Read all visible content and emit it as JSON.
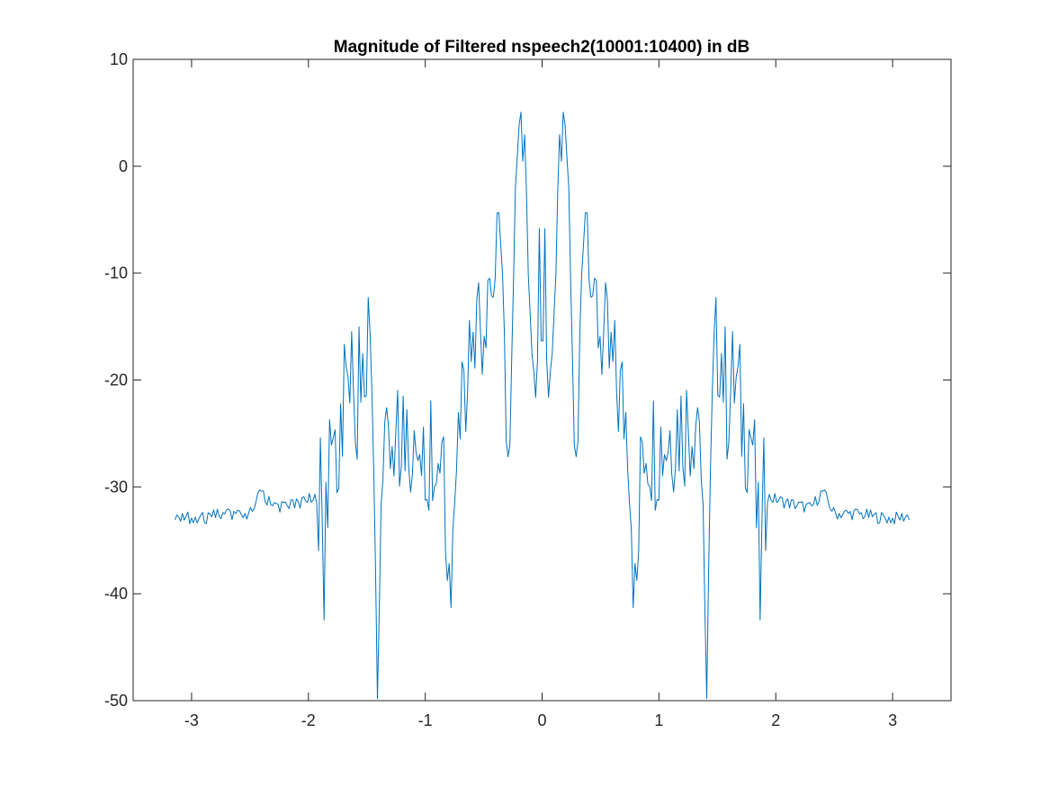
{
  "chart_data": {
    "type": "line",
    "title": "Magnitude of Filtered nspeech2(10001:10400) in dB",
    "xlabel": "",
    "ylabel": "",
    "xlim": [
      -3.5,
      3.5
    ],
    "ylim": [
      -50,
      10
    ],
    "x_ticks": [
      -3,
      -2,
      -1,
      0,
      1,
      2,
      3
    ],
    "y_ticks": [
      10,
      0,
      -10,
      -20,
      -30,
      -40,
      -50
    ],
    "x_tick_labels": [
      "-3",
      "-2",
      "-1",
      "0",
      "1",
      "2",
      "3"
    ],
    "y_tick_labels": [
      "10",
      "0",
      "-10",
      "-20",
      "-30",
      "-40",
      "-50"
    ],
    "grid": false,
    "line_color": "#0072BD",
    "series": [
      {
        "x_range": [
          -3.1416,
          3.1416
        ],
        "points": 400,
        "symmetric": true,
        "half_keypoints": [
          {
            "x": 0.0,
            "y": -21.0
          },
          {
            "x": 0.02,
            "y": -3.5
          },
          {
            "x": 0.04,
            "y": -18.0
          },
          {
            "x": 0.06,
            "y": -22.5
          },
          {
            "x": 0.09,
            "y": -15.0
          },
          {
            "x": 0.12,
            "y": -10.0
          },
          {
            "x": 0.15,
            "y": 1.5
          },
          {
            "x": 0.18,
            "y": 2.6
          },
          {
            "x": 0.21,
            "y": 2.0
          },
          {
            "x": 0.24,
            "y": -8.0
          },
          {
            "x": 0.27,
            "y": -24.0
          },
          {
            "x": 0.3,
            "y": -30.3
          },
          {
            "x": 0.33,
            "y": -12.0
          },
          {
            "x": 0.36,
            "y": -4.0
          },
          {
            "x": 0.38,
            "y": -3.0
          },
          {
            "x": 0.41,
            "y": -10.0
          },
          {
            "x": 0.45,
            "y": -13.0
          },
          {
            "x": 0.5,
            "y": -15.0
          },
          {
            "x": 0.56,
            "y": -18.0
          },
          {
            "x": 0.62,
            "y": -20.0
          },
          {
            "x": 0.68,
            "y": -22.0
          },
          {
            "x": 0.74,
            "y": -24.0
          },
          {
            "x": 0.8,
            "y": -42.7
          },
          {
            "x": 0.86,
            "y": -25.0
          },
          {
            "x": 0.95,
            "y": -26.0
          },
          {
            "x": 1.05,
            "y": -25.5
          },
          {
            "x": 1.15,
            "y": -24.0
          },
          {
            "x": 1.25,
            "y": -24.0
          },
          {
            "x": 1.35,
            "y": -22.0
          },
          {
            "x": 1.4,
            "y": -49.2
          },
          {
            "x": 1.47,
            "y": -19.0
          },
          {
            "x": 1.52,
            "y": -15.8
          },
          {
            "x": 1.58,
            "y": -22.0
          },
          {
            "x": 1.65,
            "y": -20.0
          },
          {
            "x": 1.72,
            "y": -24.0
          },
          {
            "x": 1.8,
            "y": -25.0
          },
          {
            "x": 1.87,
            "y": -40.3
          },
          {
            "x": 1.9,
            "y": -30.8
          },
          {
            "x": 1.95,
            "y": -31.0
          },
          {
            "x": 2.1,
            "y": -31.5
          },
          {
            "x": 2.3,
            "y": -32.0
          },
          {
            "x": 2.4,
            "y": -30.4
          },
          {
            "x": 2.5,
            "y": -32.5
          },
          {
            "x": 2.7,
            "y": -32.5
          },
          {
            "x": 2.85,
            "y": -32.8
          },
          {
            "x": 3.0,
            "y": -33.0
          },
          {
            "x": 3.1416,
            "y": -32.7
          }
        ]
      }
    ]
  }
}
